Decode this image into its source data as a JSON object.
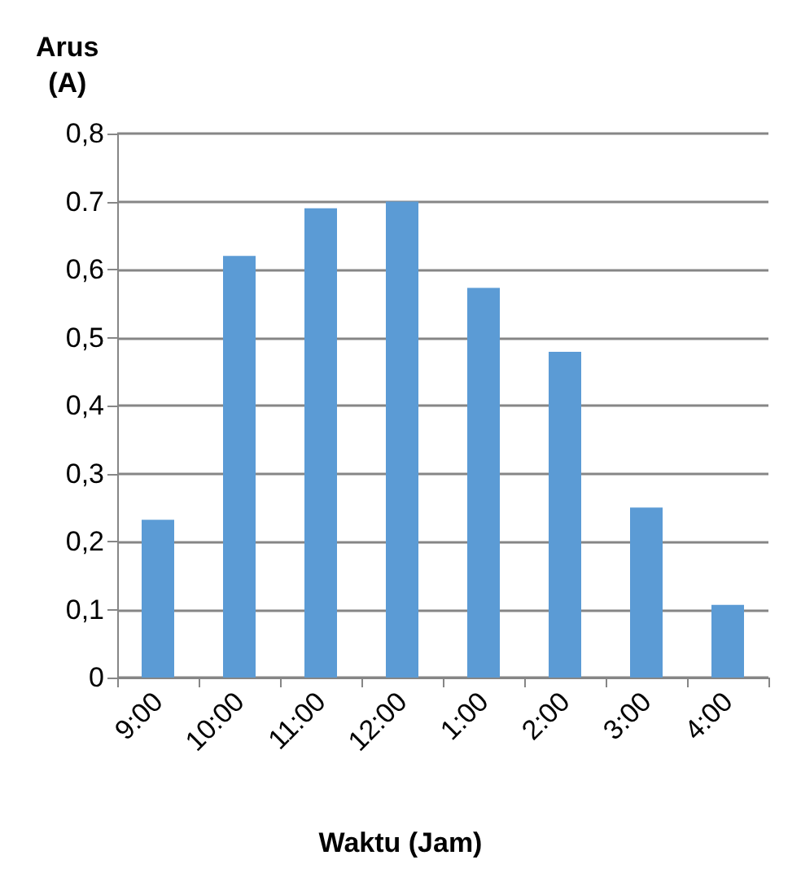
{
  "chart_data": {
    "type": "bar",
    "ylabel": "Arus\n(A)",
    "xlabel": "Waktu (Jam)",
    "categories": [
      "9:00",
      "10:00",
      "11:00",
      "12:00",
      "1:00",
      "2:00",
      "3:00",
      "4:00"
    ],
    "values": [
      0.232,
      0.62,
      0.69,
      0.7,
      0.573,
      0.479,
      0.25,
      0.107
    ],
    "color": "#5b9bd5",
    "ylim": [
      0,
      0.8
    ],
    "yticks": [
      {
        "value": 0,
        "label": "0"
      },
      {
        "value": 0.1,
        "label": "0,1"
      },
      {
        "value": 0.2,
        "label": "0,2"
      },
      {
        "value": 0.3,
        "label": "0,3"
      },
      {
        "value": 0.4,
        "label": "0,4"
      },
      {
        "value": 0.5,
        "label": "0,5"
      },
      {
        "value": 0.6,
        "label": "0,6"
      },
      {
        "value": 0.7,
        "label": "0.7"
      },
      {
        "value": 0.8,
        "label": "0,8"
      }
    ],
    "grid": "y"
  }
}
